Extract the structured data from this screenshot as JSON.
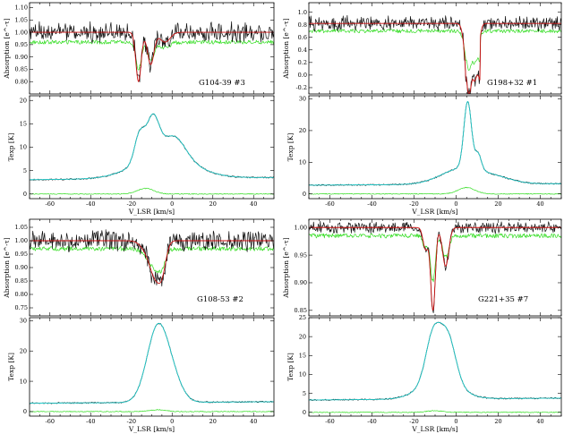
{
  "chart_data": [
    {
      "type": "line",
      "source": "G104-39 #3",
      "xlabel": "V_LSR [km/s]",
      "xlim": [
        -70,
        50
      ],
      "xticks": [
        -60,
        -40,
        -20,
        0,
        20,
        40
      ],
      "abs": {
        "ylabel": "Absorption [e^-τ]",
        "ylim": [
          0.75,
          1.12
        ],
        "yticks": [
          0.8,
          0.85,
          0.9,
          0.95,
          1.0,
          1.05,
          1.1
        ],
        "ytick_labels": [
          "0.80",
          "0.85",
          "0.90",
          "0.95",
          "1.00",
          "1.05",
          "1.10"
        ],
        "continuum": 1.0,
        "noise": 0.03,
        "green_level": 0.96,
        "green_noise": 0.008,
        "fit_components": [
          {
            "v": -16.5,
            "depth": 0.2,
            "width": 1.3
          },
          {
            "v": -10.5,
            "depth": 0.13,
            "width": 1.6
          },
          {
            "v": -3.5,
            "depth": 0.04,
            "width": 2.5
          }
        ]
      },
      "em": {
        "ylabel": "Texp [K]",
        "ylim": [
          -1,
          21
        ],
        "yticks": [
          0,
          5,
          10,
          15,
          20
        ],
        "ytick_labels": [
          "0",
          "5",
          "10",
          "15",
          "20"
        ],
        "baseline": 3.3,
        "components": [
          {
            "v": -4,
            "amp": 5.0,
            "width": 14
          },
          {
            "v": -16,
            "amp": 6.0,
            "width": 2.5
          },
          {
            "v": -9.5,
            "amp": 8.3,
            "width": 3.0
          },
          {
            "v": 1,
            "amp": 4.3,
            "width": 5.5
          }
        ],
        "green_peak_v": -13,
        "green_peak_amp": 1.2
      }
    },
    {
      "type": "line",
      "source": "G198+32 #1",
      "xlabel": "V_LSR [km/s]",
      "xlim": [
        -70,
        50
      ],
      "xticks": [
        -60,
        -40,
        -20,
        0,
        20,
        40
      ],
      "abs": {
        "ylabel": "Absorption [e^-τ]",
        "ylim": [
          -0.3,
          1.15
        ],
        "yticks": [
          -0.2,
          0.0,
          0.2,
          0.4,
          0.6,
          0.8,
          1.0
        ],
        "ytick_labels": [
          "-0.2",
          "0.0",
          "0.2",
          "0.4",
          "0.6",
          "0.8",
          "1.0"
        ],
        "continuum": 0.82,
        "noise": 0.09,
        "green_level": 0.7,
        "green_noise": 0.03,
        "fit_components": [
          {
            "v": 6,
            "depth": 1.1,
            "width": 1.6
          },
          {
            "v": 9.5,
            "depth": 0.7,
            "width": 1.3
          }
        ],
        "fit_plateau": {
          "v1": 4.5,
          "v2": 11.5,
          "level": -0.05
        }
      },
      "em": {
        "ylabel": "Texp [K]",
        "ylim": [
          -1.5,
          31
        ],
        "yticks": [
          0,
          10,
          20,
          30
        ],
        "ytick_labels": [
          "0",
          "10",
          "20",
          "30"
        ],
        "baseline": 3.0,
        "components": [
          {
            "v": 5.5,
            "amp": 21,
            "width": 1.8
          },
          {
            "v": 10.5,
            "amp": 5,
            "width": 1.5
          },
          {
            "v": 3,
            "amp": 5,
            "width": 10
          },
          {
            "v": 20,
            "amp": 1.5,
            "width": 8
          }
        ],
        "green_peak_v": 5,
        "green_peak_amp": 2.0
      }
    },
    {
      "type": "line",
      "source": "G108-53 #2",
      "xlabel": "V_LSR [km/s]",
      "xlim": [
        -70,
        50
      ],
      "xticks": [
        -60,
        -40,
        -20,
        0,
        20,
        40
      ],
      "abs": {
        "ylabel": "Absorption [e^-τ]",
        "ylim": [
          0.72,
          1.08
        ],
        "yticks": [
          0.75,
          0.8,
          0.85,
          0.9,
          0.95,
          1.0,
          1.05
        ],
        "ytick_labels": [
          "0.75",
          "0.80",
          "0.85",
          "0.90",
          "0.95",
          "1.00",
          "1.05"
        ],
        "continuum": 1.0,
        "noise": 0.03,
        "green_level": 0.97,
        "green_noise": 0.008,
        "fit_components": [
          {
            "v": -8.5,
            "depth": 0.1,
            "width": 2.3
          },
          {
            "v": -5,
            "depth": 0.11,
            "width": 2.0
          },
          {
            "v": -12,
            "depth": 0.04,
            "width": 3.0
          }
        ]
      },
      "em": {
        "ylabel": "Texp [K]",
        "ylim": [
          -1.5,
          31
        ],
        "yticks": [
          0,
          10,
          20,
          30
        ],
        "ytick_labels": [
          "0",
          "10",
          "20",
          "30"
        ],
        "baseline": 3.0,
        "components": [
          {
            "v": -7,
            "amp": 25,
            "width": 5.3
          },
          {
            "v": 1,
            "amp": 5,
            "width": 4.5
          }
        ],
        "green_peak_v": -7,
        "green_peak_amp": 0.6
      }
    },
    {
      "type": "line",
      "source": "G221+35 #7",
      "xlabel": "V_LSR [km/s]",
      "xlim": [
        -70,
        50
      ],
      "xticks": [
        -60,
        -40,
        -20,
        0,
        20,
        40
      ],
      "abs": {
        "ylabel": "Absorption [e^-τ]",
        "ylim": [
          0.84,
          1.015
        ],
        "yticks": [
          0.85,
          0.9,
          0.95,
          1.0
        ],
        "ytick_labels": [
          "0.85",
          "0.90",
          "0.95",
          "1.00"
        ],
        "continuum": 1.0,
        "noise": 0.008,
        "green_level": 0.985,
        "green_noise": 0.004,
        "fit_components": [
          {
            "v": -14.5,
            "depth": 0.04,
            "width": 1.2
          },
          {
            "v": -11,
            "depth": 0.15,
            "width": 1.1
          },
          {
            "v": -5,
            "depth": 0.07,
            "width": 1.5
          }
        ]
      },
      "em": {
        "ylabel": "Texp [K]",
        "ylim": [
          -1,
          25
        ],
        "yticks": [
          0,
          5,
          10,
          15,
          20,
          25
        ],
        "ytick_labels": [
          "0",
          "5",
          "10",
          "15",
          "20",
          "25"
        ],
        "baseline": 3.5,
        "components": [
          {
            "v": -11,
            "amp": 12,
            "width": 3.5
          },
          {
            "v": -4,
            "amp": 12,
            "width": 3.8
          },
          {
            "v": -8,
            "amp": 5,
            "width": 9
          }
        ],
        "green_peak_v": -10,
        "green_peak_amp": 0.4
      }
    }
  ]
}
